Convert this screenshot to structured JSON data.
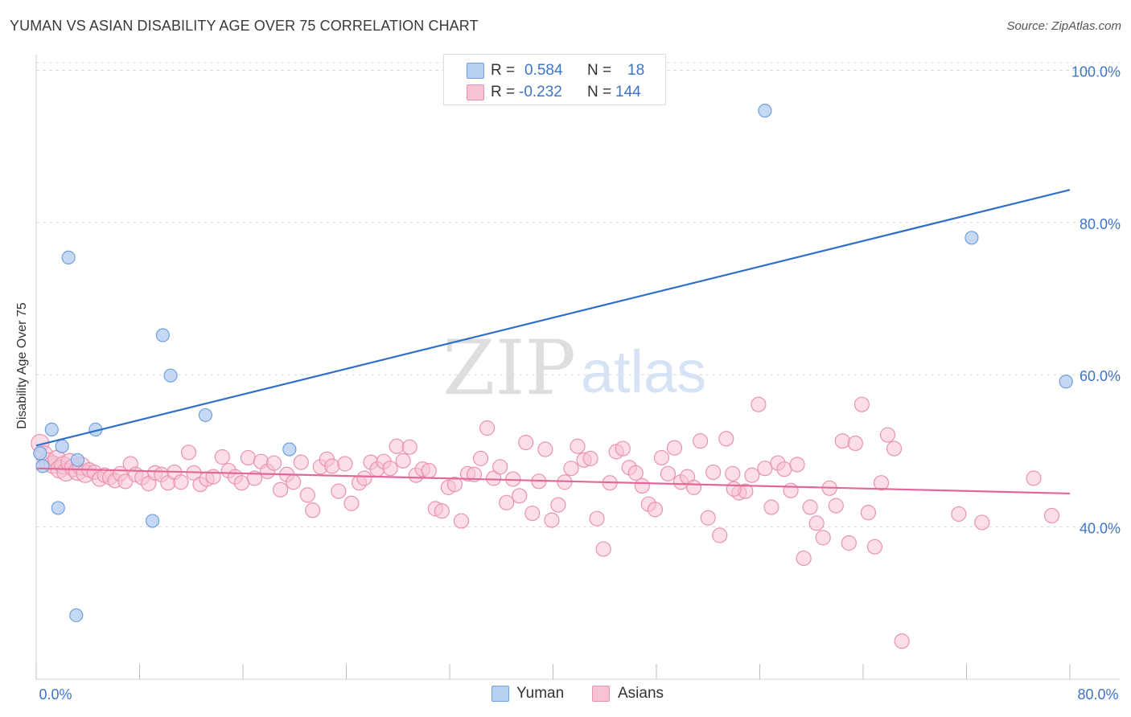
{
  "title": "YUMAN VS ASIAN DISABILITY AGE OVER 75 CORRELATION CHART",
  "source": "Source: ZipAtlas.com",
  "watermark": {
    "zip": "ZIP",
    "atlas": "atlas"
  },
  "colors": {
    "yuman_fill": "#b7d0f2",
    "yuman_stroke": "#6f9fdc",
    "yuman_line": "#2f6fc9",
    "asian_fill": "#f7c3d3",
    "asian_stroke": "#e992b0",
    "asian_line": "#e0699a",
    "tick_label": "#3d74c8"
  },
  "legend": {
    "rows": [
      {
        "r_label": "R =",
        "r_value": "0.584",
        "n_label": "N =",
        "n_value": "18"
      },
      {
        "r_label": "R =",
        "r_value": "-0.232",
        "n_label": "N =",
        "n_value": "144"
      }
    ]
  },
  "chart_data": {
    "type": "scatter",
    "title": "YUMAN VS ASIAN DISABILITY AGE OVER 75 CORRELATION CHART",
    "xlabel": "",
    "ylabel": "Disability Age Over 75",
    "xlim": [
      0,
      80
    ],
    "ylim": [
      20,
      101
    ],
    "x_tick_labels": [
      {
        "value": 0,
        "label": "0.0%"
      },
      {
        "value": 80,
        "label": "80.0%"
      }
    ],
    "x_minor_ticks": [
      0,
      8,
      16,
      24,
      32,
      40,
      48,
      56,
      64,
      72,
      80
    ],
    "y_ticks": [
      {
        "value": 100,
        "label": "100.0%"
      },
      {
        "value": 80,
        "label": "80.0%"
      },
      {
        "value": 60,
        "label": "60.0%"
      },
      {
        "value": 40,
        "label": "40.0%"
      }
    ],
    "grid": true,
    "legend_position": "top-center",
    "series": [
      {
        "name": "Yuman",
        "r": 0.584,
        "n": 18,
        "trend": [
          [
            0,
            50.7
          ],
          [
            80,
            84.3
          ]
        ],
        "points": [
          [
            0.5,
            48.0
          ],
          [
            1.2,
            52.8
          ],
          [
            2.0,
            50.6
          ],
          [
            3.2,
            48.8
          ],
          [
            1.7,
            42.5
          ],
          [
            2.5,
            75.4
          ],
          [
            4.6,
            52.8
          ],
          [
            9.8,
            65.2
          ],
          [
            10.4,
            59.9
          ],
          [
            13.1,
            54.7
          ],
          [
            19.6,
            50.2
          ],
          [
            9.0,
            40.8
          ],
          [
            3.1,
            28.4
          ],
          [
            38.6,
            100.9
          ],
          [
            56.4,
            94.7
          ],
          [
            72.4,
            78.0
          ],
          [
            79.7,
            59.1
          ],
          [
            0.3,
            49.7
          ]
        ]
      },
      {
        "name": "Asians",
        "r": -0.232,
        "n": 144,
        "trend": [
          [
            0,
            47.7
          ],
          [
            80,
            44.4
          ]
        ],
        "points": [
          [
            0.3,
            51.0
          ],
          [
            0.6,
            49.5
          ],
          [
            0.9,
            48.6
          ],
          [
            1.3,
            48.2
          ],
          [
            1.6,
            48.9
          ],
          [
            1.8,
            47.6
          ],
          [
            2.1,
            48.1
          ],
          [
            2.3,
            47.2
          ],
          [
            2.6,
            48.5
          ],
          [
            2.9,
            47.8
          ],
          [
            3.2,
            47.3
          ],
          [
            3.5,
            48.0
          ],
          [
            3.8,
            47.0
          ],
          [
            4.1,
            47.5
          ],
          [
            4.5,
            47.2
          ],
          [
            4.9,
            46.3
          ],
          [
            5.3,
            46.8
          ],
          [
            5.7,
            46.5
          ],
          [
            6.1,
            46.1
          ],
          [
            6.5,
            47.0
          ],
          [
            6.9,
            46.0
          ],
          [
            7.3,
            48.3
          ],
          [
            7.7,
            46.9
          ],
          [
            8.2,
            46.5
          ],
          [
            8.7,
            45.7
          ],
          [
            9.2,
            47.1
          ],
          [
            9.7,
            46.9
          ],
          [
            10.2,
            45.8
          ],
          [
            10.7,
            47.2
          ],
          [
            11.2,
            45.9
          ],
          [
            11.8,
            49.8
          ],
          [
            12.2,
            47.1
          ],
          [
            12.7,
            45.6
          ],
          [
            13.2,
            46.3
          ],
          [
            13.7,
            46.6
          ],
          [
            14.4,
            49.2
          ],
          [
            14.9,
            47.4
          ],
          [
            15.4,
            46.6
          ],
          [
            15.9,
            45.8
          ],
          [
            16.4,
            49.1
          ],
          [
            16.9,
            46.4
          ],
          [
            17.4,
            48.6
          ],
          [
            17.9,
            47.3
          ],
          [
            18.4,
            48.4
          ],
          [
            18.9,
            44.9
          ],
          [
            19.4,
            46.9
          ],
          [
            19.9,
            45.9
          ],
          [
            20.5,
            48.5
          ],
          [
            21.0,
            44.2
          ],
          [
            21.4,
            42.2
          ],
          [
            22.0,
            47.9
          ],
          [
            22.5,
            48.9
          ],
          [
            22.9,
            48.0
          ],
          [
            23.4,
            44.7
          ],
          [
            23.9,
            48.3
          ],
          [
            24.4,
            43.1
          ],
          [
            25.0,
            45.8
          ],
          [
            25.4,
            46.4
          ],
          [
            25.9,
            48.5
          ],
          [
            26.4,
            47.6
          ],
          [
            26.9,
            48.6
          ],
          [
            27.4,
            47.7
          ],
          [
            27.9,
            50.6
          ],
          [
            28.4,
            48.7
          ],
          [
            28.9,
            50.5
          ],
          [
            29.4,
            46.8
          ],
          [
            29.9,
            47.6
          ],
          [
            30.4,
            47.4
          ],
          [
            30.9,
            42.4
          ],
          [
            31.4,
            42.1
          ],
          [
            31.9,
            45.2
          ],
          [
            32.4,
            45.6
          ],
          [
            32.9,
            40.8
          ],
          [
            33.4,
            47.0
          ],
          [
            33.9,
            46.9
          ],
          [
            34.4,
            49.0
          ],
          [
            34.9,
            53.0
          ],
          [
            35.4,
            46.4
          ],
          [
            35.9,
            47.9
          ],
          [
            36.4,
            43.2
          ],
          [
            36.9,
            46.3
          ],
          [
            37.4,
            44.1
          ],
          [
            37.9,
            51.1
          ],
          [
            38.4,
            41.8
          ],
          [
            38.9,
            46.0
          ],
          [
            39.4,
            50.2
          ],
          [
            39.9,
            40.9
          ],
          [
            40.4,
            42.9
          ],
          [
            40.9,
            45.9
          ],
          [
            41.4,
            47.7
          ],
          [
            41.9,
            50.6
          ],
          [
            42.4,
            48.8
          ],
          [
            42.9,
            49.0
          ],
          [
            43.4,
            41.1
          ],
          [
            43.9,
            37.1
          ],
          [
            44.4,
            45.8
          ],
          [
            44.9,
            49.9
          ],
          [
            45.4,
            50.3
          ],
          [
            45.9,
            47.8
          ],
          [
            46.4,
            47.1
          ],
          [
            46.9,
            45.4
          ],
          [
            47.4,
            43.0
          ],
          [
            47.9,
            42.3
          ],
          [
            48.4,
            49.1
          ],
          [
            48.9,
            47.0
          ],
          [
            49.4,
            50.4
          ],
          [
            49.9,
            45.9
          ],
          [
            50.4,
            46.6
          ],
          [
            50.9,
            45.2
          ],
          [
            51.4,
            51.3
          ],
          [
            52.0,
            41.2
          ],
          [
            52.4,
            47.2
          ],
          [
            52.9,
            38.9
          ],
          [
            53.4,
            51.6
          ],
          [
            53.9,
            47.0
          ],
          [
            54.4,
            44.5
          ],
          [
            54.9,
            44.7
          ],
          [
            55.4,
            46.8
          ],
          [
            55.9,
            56.1
          ],
          [
            56.4,
            47.7
          ],
          [
            56.9,
            42.6
          ],
          [
            57.4,
            48.4
          ],
          [
            57.9,
            47.6
          ],
          [
            58.4,
            44.8
          ],
          [
            58.9,
            48.2
          ],
          [
            59.4,
            35.9
          ],
          [
            59.9,
            42.6
          ],
          [
            60.4,
            40.5
          ],
          [
            60.9,
            38.6
          ],
          [
            61.4,
            45.1
          ],
          [
            61.9,
            42.8
          ],
          [
            62.4,
            51.3
          ],
          [
            62.9,
            37.9
          ],
          [
            63.4,
            51.0
          ],
          [
            63.9,
            56.1
          ],
          [
            64.4,
            41.9
          ],
          [
            64.9,
            37.4
          ],
          [
            65.4,
            45.8
          ],
          [
            65.9,
            52.1
          ],
          [
            66.4,
            50.3
          ],
          [
            67.0,
            25.0
          ],
          [
            71.4,
            41.7
          ],
          [
            73.2,
            40.6
          ],
          [
            77.2,
            46.4
          ],
          [
            78.6,
            41.5
          ],
          [
            54.0,
            45.0
          ]
        ]
      }
    ]
  },
  "bottom_legend": [
    {
      "label": "Yuman"
    },
    {
      "label": "Asians"
    }
  ]
}
